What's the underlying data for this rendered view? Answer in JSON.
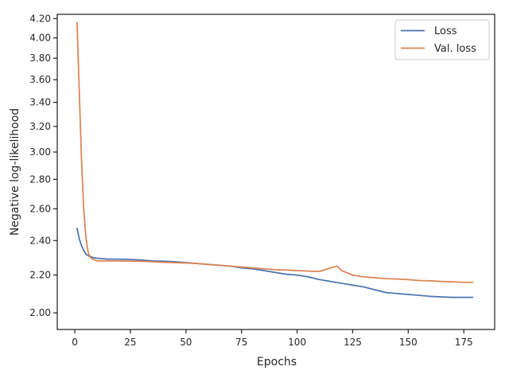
{
  "chart_data": {
    "type": "line",
    "title": "",
    "xlabel": "Epochs",
    "ylabel": "Negative log-likelihood",
    "xlim": [
      -7.9,
      188.9
    ],
    "ylim": [
      1.918,
      4.245
    ],
    "yscale": "log",
    "xticks": [
      0,
      25,
      50,
      75,
      100,
      125,
      150,
      175
    ],
    "yticks": [
      2.0,
      2.2,
      2.4,
      2.6,
      2.8,
      3.0,
      3.2,
      3.4,
      3.6,
      3.8,
      4.0,
      4.2
    ],
    "ytick_labels": [
      "2.00",
      "2.20",
      "2.40",
      "2.60",
      "2.80",
      "3.00",
      "3.20",
      "3.40",
      "3.60",
      "3.80",
      "4.00",
      "4.20"
    ],
    "grid": false,
    "legend_position": "top-right",
    "series": [
      {
        "name": "Loss",
        "color": "#4c72b0",
        "x": [
          1,
          2,
          3,
          4,
          5,
          6,
          8,
          10,
          15,
          20,
          25,
          30,
          35,
          40,
          45,
          50,
          55,
          60,
          65,
          70,
          75,
          80,
          85,
          90,
          95,
          100,
          105,
          110,
          115,
          120,
          125,
          130,
          135,
          140,
          145,
          150,
          155,
          160,
          165,
          170,
          175,
          179
        ],
        "y": [
          2.475,
          2.41,
          2.37,
          2.34,
          2.32,
          2.31,
          2.3,
          2.295,
          2.29,
          2.29,
          2.288,
          2.285,
          2.28,
          2.278,
          2.275,
          2.27,
          2.265,
          2.26,
          2.255,
          2.25,
          2.24,
          2.235,
          2.225,
          2.215,
          2.205,
          2.2,
          2.19,
          2.175,
          2.165,
          2.155,
          2.145,
          2.135,
          2.12,
          2.105,
          2.1,
          2.095,
          2.09,
          2.085,
          2.082,
          2.08,
          2.08,
          2.08
        ]
      },
      {
        "name": "Val. loss",
        "color": "#dd8452",
        "x": [
          1,
          2,
          3,
          4,
          5,
          6,
          7,
          8,
          9,
          10,
          12,
          15,
          20,
          25,
          30,
          35,
          40,
          45,
          50,
          55,
          60,
          65,
          70,
          75,
          80,
          85,
          90,
          95,
          100,
          105,
          110,
          115,
          118,
          120,
          125,
          130,
          135,
          140,
          145,
          150,
          155,
          160,
          165,
          170,
          175,
          179
        ],
        "y": [
          4.16,
          3.5,
          2.95,
          2.6,
          2.42,
          2.33,
          2.3,
          2.29,
          2.285,
          2.28,
          2.28,
          2.28,
          2.28,
          2.278,
          2.278,
          2.275,
          2.272,
          2.27,
          2.268,
          2.265,
          2.26,
          2.255,
          2.25,
          2.245,
          2.24,
          2.235,
          2.23,
          2.228,
          2.225,
          2.222,
          2.22,
          2.24,
          2.25,
          2.225,
          2.2,
          2.19,
          2.185,
          2.18,
          2.178,
          2.175,
          2.17,
          2.168,
          2.165,
          2.163,
          2.16,
          2.16
        ]
      }
    ]
  }
}
